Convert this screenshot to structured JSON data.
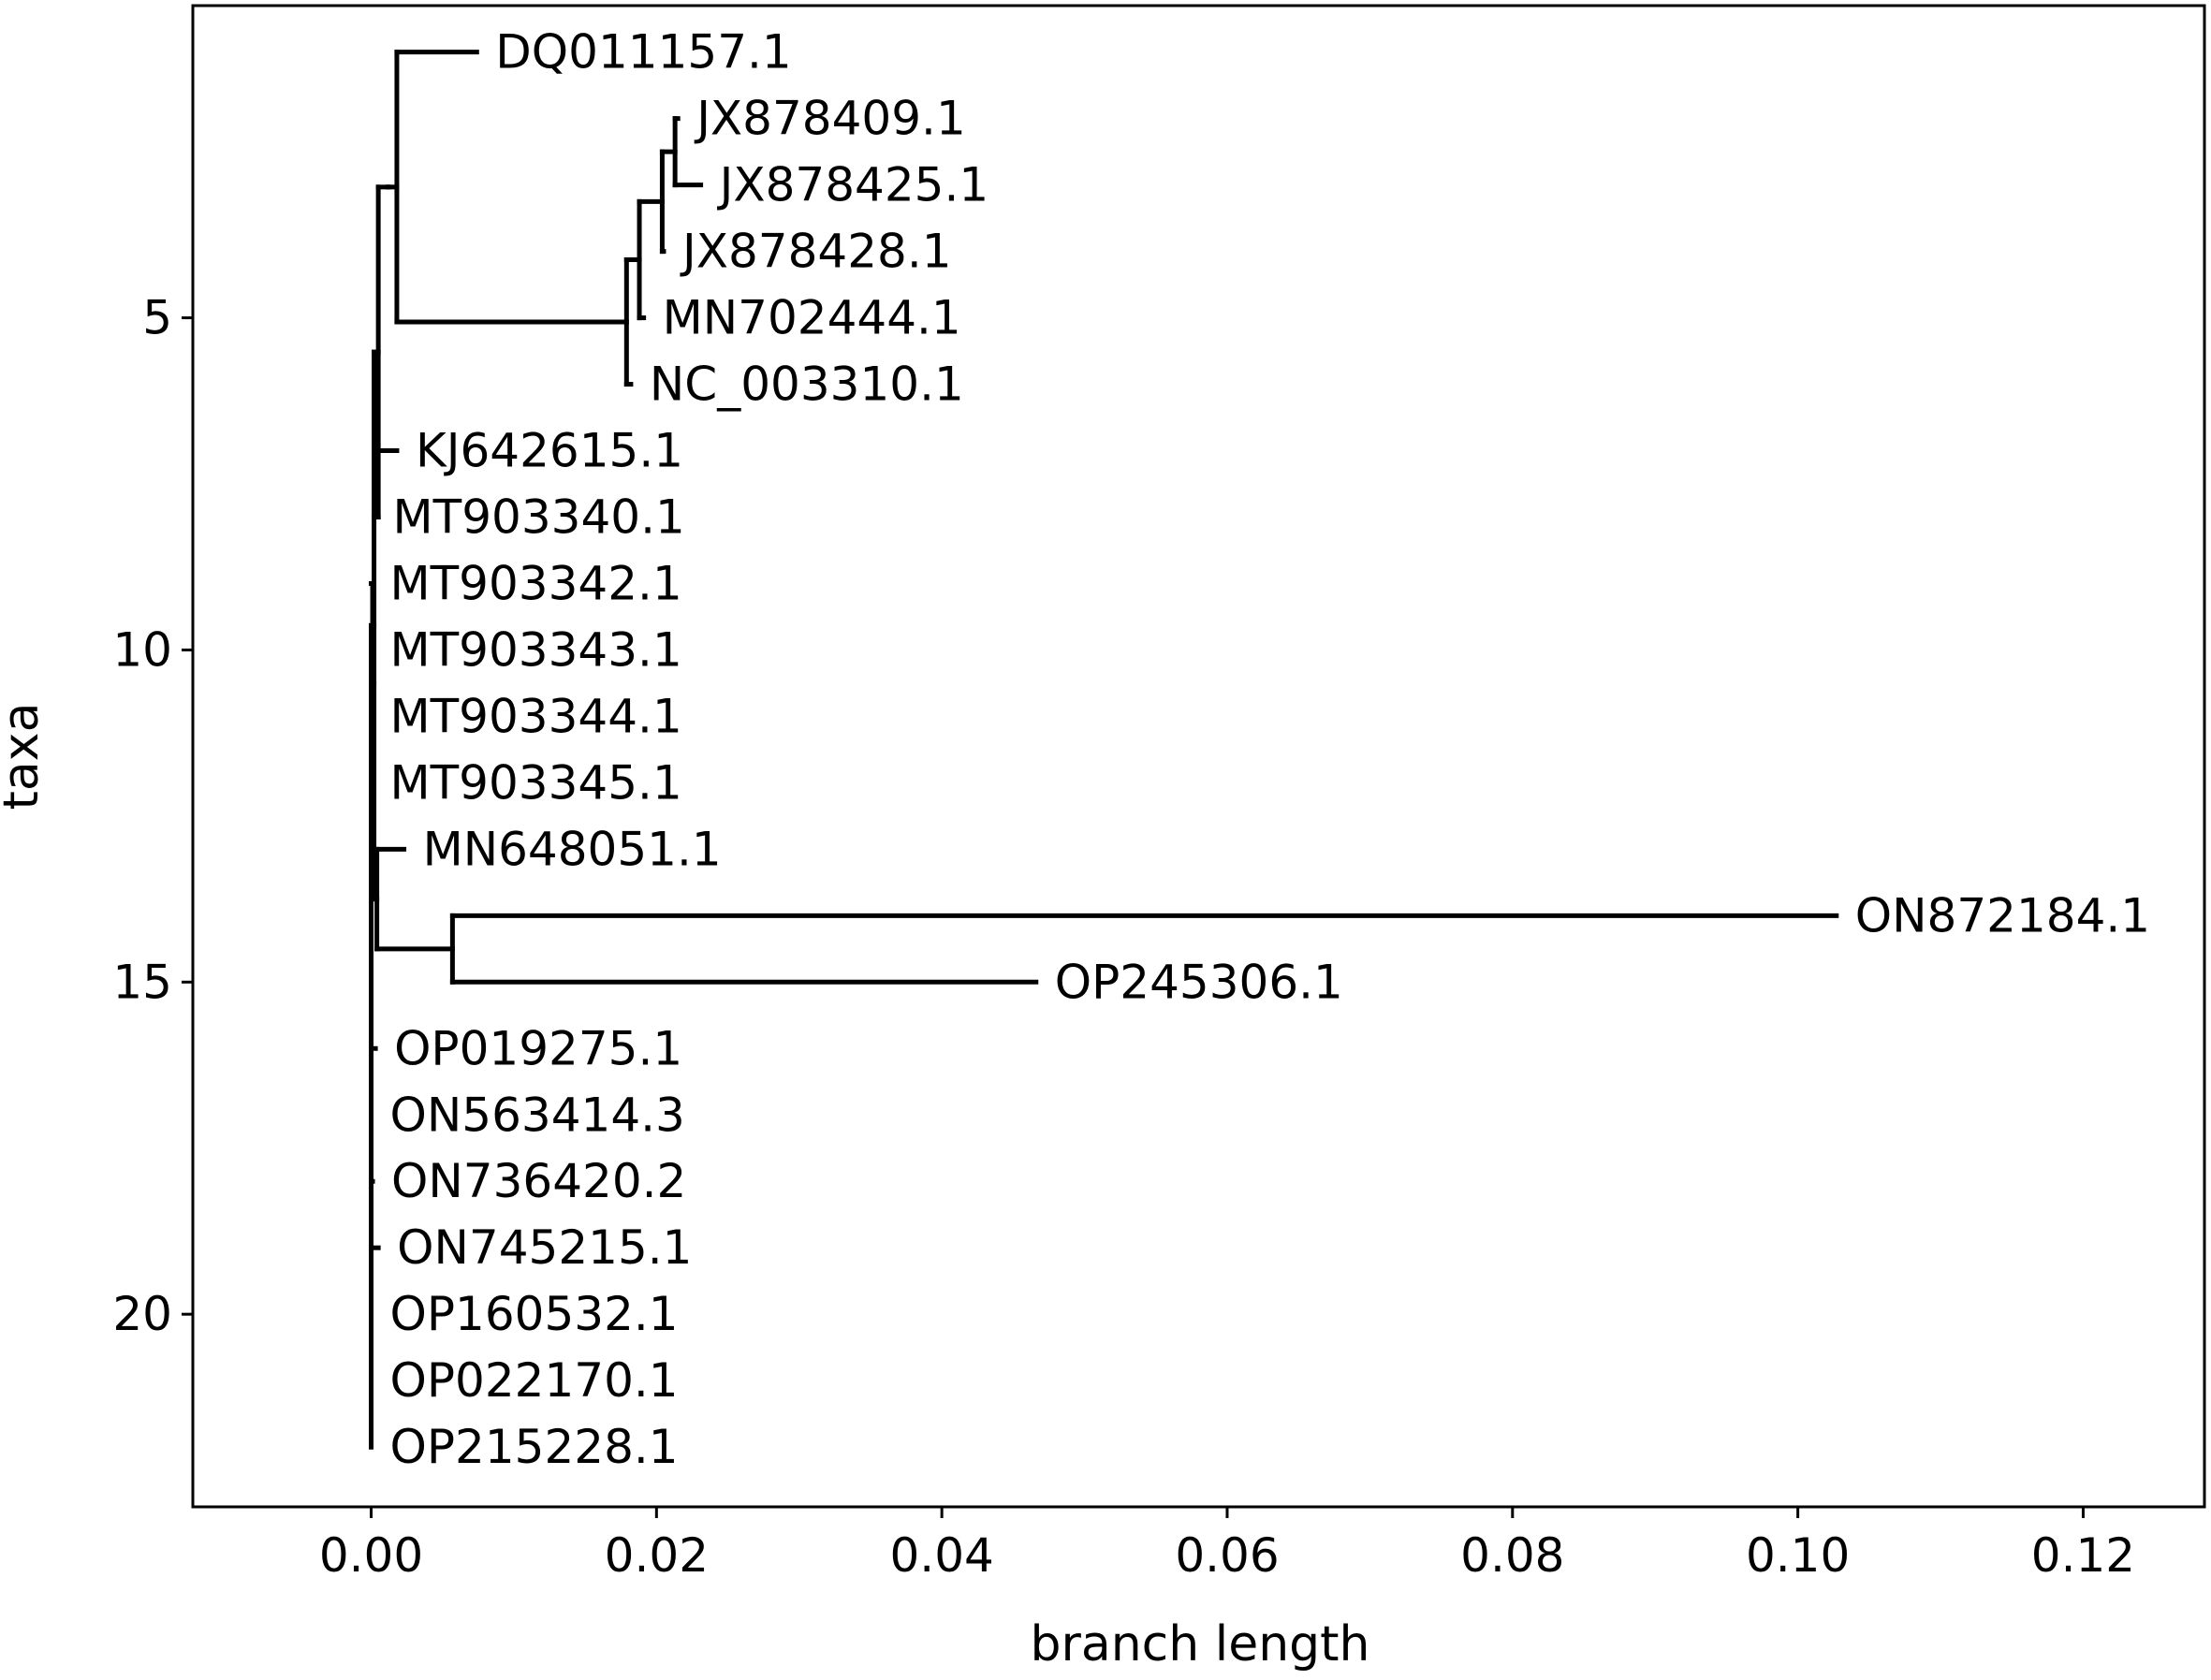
{
  "chart_data": {
    "type": "phylogenetic-tree",
    "xlabel": "branch length",
    "ylabel": "taxa",
    "xlim": [
      -0.0125,
      0.1285
    ],
    "ylim": [
      22.9,
      0.3
    ],
    "x_ticks": [
      0.0,
      0.02,
      0.04,
      0.06,
      0.08,
      0.1,
      0.12
    ],
    "x_tick_labels": [
      "0.00",
      "0.02",
      "0.04",
      "0.06",
      "0.08",
      "0.10",
      "0.12"
    ],
    "y_ticks": [
      5,
      10,
      15,
      20
    ],
    "y_tick_labels": [
      "5",
      "10",
      "15",
      "20"
    ],
    "grid": false,
    "line_color": "#000000",
    "taxa": [
      {
        "name": "DQ011157.1",
        "y": 1,
        "x": 0.0074
      },
      {
        "name": "JX878409.1",
        "y": 2,
        "x": 0.0215
      },
      {
        "name": "JX878425.1",
        "y": 3,
        "x": 0.0231
      },
      {
        "name": "JX878428.1",
        "y": 4,
        "x": 0.0205
      },
      {
        "name": "MN702444.1",
        "y": 5,
        "x": 0.0191
      },
      {
        "name": "NC_003310.1",
        "y": 6,
        "x": 0.0182
      },
      {
        "name": "KJ642615.1",
        "y": 7,
        "x": 0.0018
      },
      {
        "name": "MT903340.1",
        "y": 8,
        "x": 0.0002
      },
      {
        "name": "MT903342.1",
        "y": 9,
        "x": 0.0
      },
      {
        "name": "MT903343.1",
        "y": 10,
        "x": 0.0
      },
      {
        "name": "MT903344.1",
        "y": 11,
        "x": 0.0
      },
      {
        "name": "MT903345.1",
        "y": 12,
        "x": 0.0
      },
      {
        "name": "MN648051.1",
        "y": 13,
        "x": 0.0023
      },
      {
        "name": "ON872184.1",
        "y": 14,
        "x": 0.1027
      },
      {
        "name": "OP245306.1",
        "y": 15,
        "x": 0.0466
      },
      {
        "name": "OP019275.1",
        "y": 16,
        "x": 0.0003
      },
      {
        "name": "ON563414.3",
        "y": 17,
        "x": 0.0
      },
      {
        "name": "ON736420.2",
        "y": 18,
        "x": 0.0001
      },
      {
        "name": "ON745215.1",
        "y": 19,
        "x": 0.0005
      },
      {
        "name": "OP160532.1",
        "y": 20,
        "x": 0.0
      },
      {
        "name": "OP022170.1",
        "y": 21,
        "x": 0.0
      },
      {
        "name": "OP215228.1",
        "y": 22,
        "x": 0.0
      }
    ],
    "internal_nodes": [
      {
        "id": "root",
        "x": 0.0,
        "parent": null
      },
      {
        "id": "n1",
        "x": 0.0002,
        "parent": "root"
      },
      {
        "id": "n2",
        "x": 0.0005,
        "parent": "n1"
      },
      {
        "id": "n3",
        "x": 0.0012,
        "parent": "n2"
      },
      {
        "id": "n4",
        "x": 0.0018,
        "parent": "n3"
      },
      {
        "id": "n5",
        "x": 0.0179,
        "parent": "n4"
      },
      {
        "id": "n6",
        "x": 0.0188,
        "parent": "n5"
      },
      {
        "id": "n7",
        "x": 0.0204,
        "parent": "n6"
      },
      {
        "id": "n8",
        "x": 0.0213,
        "parent": "n7"
      },
      {
        "id": "n9",
        "x": 0.0001,
        "parent": "n1"
      },
      {
        "id": "n10",
        "x": 0.0004,
        "parent": "n1"
      },
      {
        "id": "n11",
        "x": 0.0057,
        "parent": "n10"
      }
    ],
    "edges": [
      [
        "root",
        "n1"
      ],
      [
        "root",
        "OP019275.1"
      ],
      [
        "root",
        "ON563414.3"
      ],
      [
        "root",
        "ON736420.2"
      ],
      [
        "root",
        "ON745215.1"
      ],
      [
        "root",
        "OP160532.1"
      ],
      [
        "root",
        "OP022170.1"
      ],
      [
        "root",
        "OP215228.1"
      ],
      [
        "n1",
        "n2"
      ],
      [
        "n1",
        "n9"
      ],
      [
        "n1",
        "n10"
      ],
      [
        "n2",
        "n3"
      ],
      [
        "n2",
        "KJ642615.1"
      ],
      [
        "n2",
        "MT903340.1"
      ],
      [
        "n3",
        "n4"
      ],
      [
        "n4",
        "DQ011157.1"
      ],
      [
        "n4",
        "n5"
      ],
      [
        "n5",
        "n6"
      ],
      [
        "n5",
        "NC_003310.1"
      ],
      [
        "n6",
        "n7"
      ],
      [
        "n6",
        "MN702444.1"
      ],
      [
        "n7",
        "n8"
      ],
      [
        "n7",
        "JX878428.1"
      ],
      [
        "n8",
        "JX878409.1"
      ],
      [
        "n8",
        "JX878425.1"
      ],
      [
        "n9",
        "MT903342.1"
      ],
      [
        "n9",
        "MT903343.1"
      ],
      [
        "n9",
        "MT903344.1"
      ],
      [
        "n9",
        "MT903345.1"
      ],
      [
        "n10",
        "MN648051.1"
      ],
      [
        "n10",
        "n11"
      ],
      [
        "n11",
        "ON872184.1"
      ],
      [
        "n11",
        "OP245306.1"
      ]
    ]
  }
}
